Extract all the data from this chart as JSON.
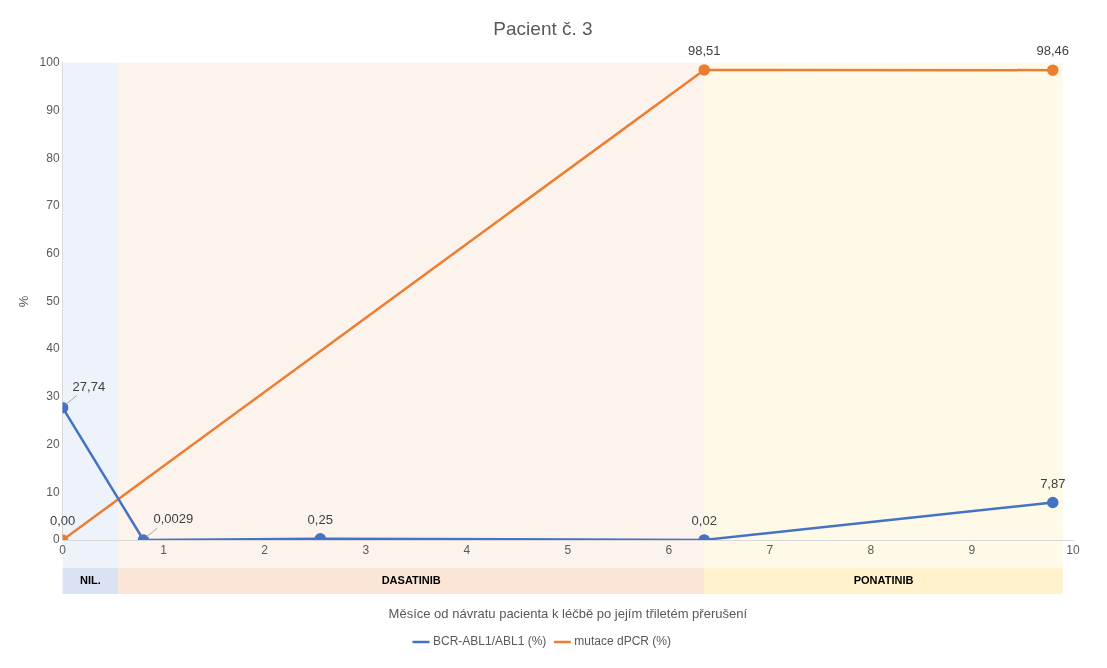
{
  "chart_data": {
    "type": "line",
    "title": "Pacient č. 3",
    "xlabel": "Měsíce od návratu pacienta k léčbě po jejím třiletém přerušení",
    "ylabel": "%",
    "xlim": [
      0,
      10
    ],
    "xticks": [
      0,
      1,
      2,
      3,
      4,
      5,
      6,
      7,
      8,
      9,
      10
    ],
    "ylim": [
      0,
      100
    ],
    "yticks": [
      0,
      10,
      20,
      30,
      40,
      50,
      60,
      70,
      80,
      90,
      100
    ],
    "grid": false,
    "legend": "bottom",
    "marker": "circle",
    "line_style": "solid",
    "series": [
      {
        "name": "BCR-ABL1/ABL1 (%)",
        "color": "#4472c4",
        "x": [
          0,
          0.8,
          2.55,
          6.35,
          9.8
        ],
        "values": [
          27.74,
          0.0029,
          0.25,
          0.02,
          7.87
        ],
        "value_labels": [
          "27,74",
          "0,0029",
          "0,25",
          "0,02",
          "7,87"
        ]
      },
      {
        "name": "mutace dPCR (%)",
        "color": "#ed7d31",
        "x": [
          0,
          6.35,
          9.8
        ],
        "values": [
          0,
          98.51,
          98.46
        ],
        "value_labels": [
          "0,00",
          "98,51",
          "98,46"
        ]
      }
    ],
    "bands": [
      {
        "axis": "x",
        "from": 0,
        "to": 0.55,
        "label": "NIL.",
        "color": "#dae3f3"
      },
      {
        "axis": "x",
        "from": 0.55,
        "to": 6.35,
        "label": "DASATINIB",
        "color": "#fbe5d6"
      },
      {
        "axis": "x",
        "from": 6.35,
        "to": 9.9,
        "label": "PONATINIB",
        "color": "#fff2cc"
      }
    ]
  }
}
